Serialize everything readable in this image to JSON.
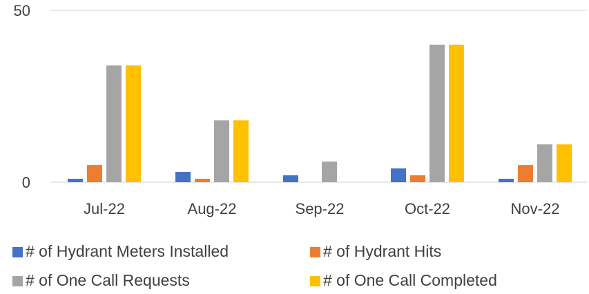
{
  "chart_data": {
    "type": "bar",
    "categories": [
      "Jul-22",
      "Aug-22",
      "Sep-22",
      "Oct-22",
      "Nov-22"
    ],
    "series": [
      {
        "name": "# of Hydrant Meters Installed",
        "color": "#4472c4",
        "values": [
          1,
          3,
          2,
          4,
          1
        ]
      },
      {
        "name": "# of Hydrant Hits",
        "color": "#ed7d31",
        "values": [
          5,
          1,
          0,
          2,
          5
        ]
      },
      {
        "name": "# of One Call Requests",
        "color": "#a5a5a5",
        "values": [
          34,
          18,
          6,
          40,
          11
        ]
      },
      {
        "name": "# of One Call Completed",
        "color": "#ffc000",
        "values": [
          34,
          18,
          0,
          40,
          11
        ]
      }
    ],
    "ylim": [
      0,
      50
    ],
    "yticks": [
      0,
      50
    ],
    "grid": true,
    "legend": "bottom"
  }
}
